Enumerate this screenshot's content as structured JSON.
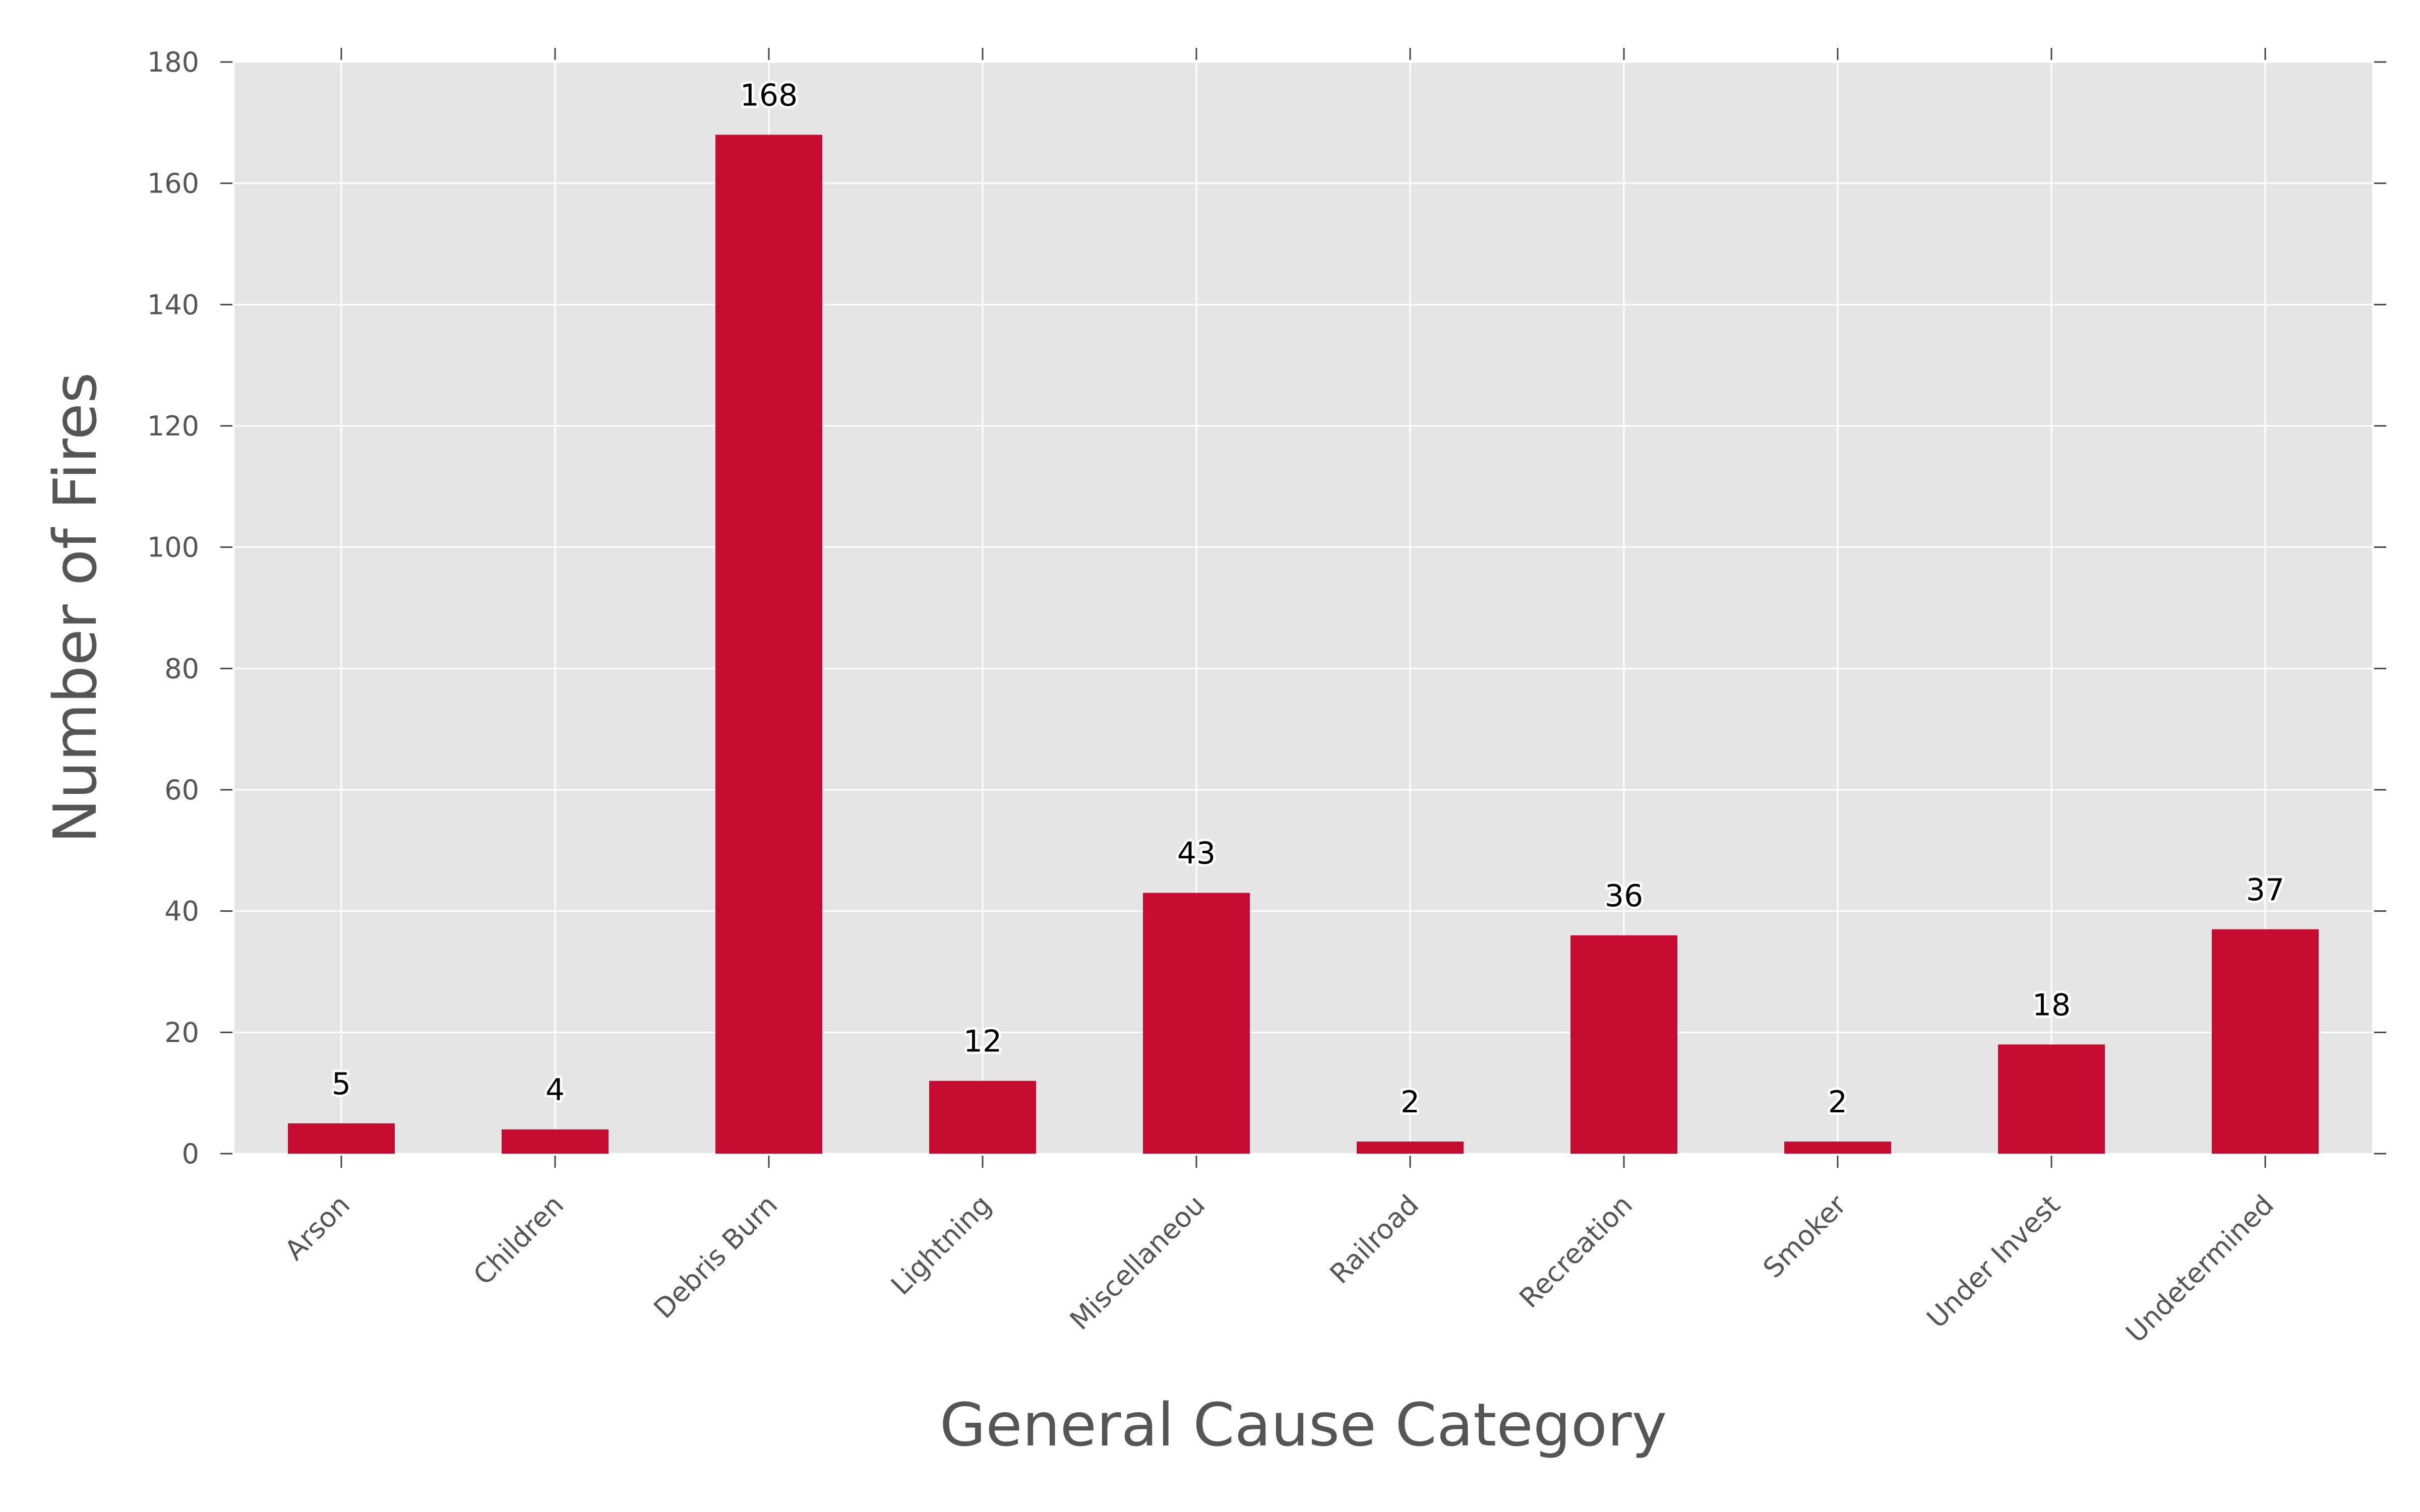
{
  "chart_data": {
    "type": "bar",
    "title": "",
    "xlabel": "General Cause Category",
    "ylabel": "Number of Fires",
    "categories": [
      "Arson",
      "Children",
      "Debris Burn",
      "Lightning",
      "Miscellaneou",
      "Railroad",
      "Recreation",
      "Smoker",
      "Under Invest",
      "Undetermined"
    ],
    "values": [
      5,
      4,
      168,
      12,
      43,
      2,
      36,
      2,
      18,
      37
    ],
    "data_labels": [
      "5",
      "4",
      "168",
      "12",
      "43",
      "2",
      "36",
      "2",
      "18",
      "37"
    ],
    "ylim": [
      0,
      180
    ],
    "yticks": [
      0,
      20,
      40,
      60,
      80,
      100,
      120,
      140,
      160,
      180
    ],
    "ytick_labels": [
      "0",
      "20",
      "40",
      "60",
      "80",
      "100",
      "120",
      "140",
      "160",
      "180"
    ],
    "grid": true,
    "legend": "none",
    "bar_color": "#c60c30",
    "plot_background": "#e5e5e5",
    "grid_color": "#ffffff"
  }
}
